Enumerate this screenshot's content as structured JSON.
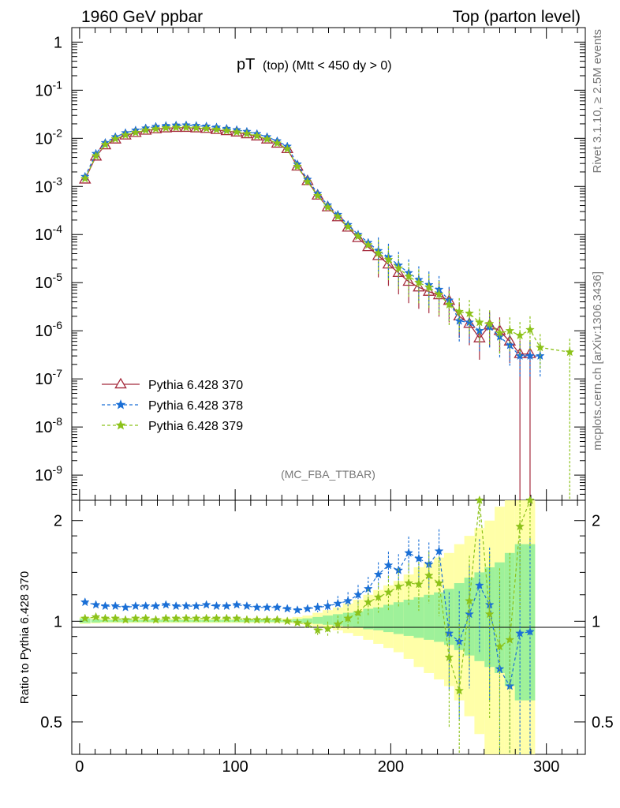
{
  "header": {
    "left": "1960 GeV ppbar",
    "right": "Top (parton level)"
  },
  "side": {
    "rivet": "Rivet 3.1.10, ≥ 2.5M events",
    "mcplots": "mcplots.cern.ch [arXiv:1306.3436]"
  },
  "chart_data": {
    "type": "line",
    "title_main": "pT",
    "title_sub": "(top)  (Mtt < 450 dy > 0)",
    "analysis_label": "(MC_FBA_TTBAR)",
    "ratio_ylabel": "Ratio to Pythia 6.428 370",
    "x": [
      3.5,
      10.5,
      16.5,
      23,
      29.5,
      36,
      42.5,
      49,
      55.5,
      62,
      68.5,
      75,
      81.5,
      88,
      94.5,
      101,
      107.5,
      114,
      120.5,
      127,
      133.5,
      140,
      146.5,
      153,
      159.5,
      166,
      172.5,
      179,
      185.5,
      192,
      198.5,
      205,
      211.5,
      218,
      224.5,
      231,
      237.5,
      244,
      250.5,
      257,
      263.5,
      270,
      276.5,
      283,
      289.5,
      296,
      315
    ],
    "top_panel": {
      "yscale": "log",
      "ylim": [
        3e-10,
        2
      ],
      "ytick_labels": [
        "1",
        "10^-1",
        "10^-2",
        "10^-3",
        "10^-4",
        "10^-5",
        "10^-6",
        "10^-7",
        "10^-8",
        "10^-9"
      ],
      "xlim": [
        -5,
        325
      ]
    },
    "ratio_panel": {
      "yscale": "log",
      "ylim": [
        0.4,
        2.3
      ],
      "ytick_labels": [
        "0.5",
        "1",
        "2"
      ],
      "xlim": [
        -5,
        325
      ],
      "xtick_labels": [
        "0",
        "100",
        "200",
        "300"
      ]
    },
    "series": [
      {
        "name": "Pythia 6.428 370",
        "color": "#a52a3c",
        "style": "solid",
        "marker": "triangle",
        "values": [
          0.0014,
          0.0042,
          0.0072,
          0.0095,
          0.0115,
          0.013,
          0.0145,
          0.0155,
          0.0162,
          0.0166,
          0.0166,
          0.0162,
          0.0158,
          0.015,
          0.0142,
          0.0133,
          0.0122,
          0.011,
          0.0095,
          0.0078,
          0.006,
          0.0026,
          0.0013,
          0.00065,
          0.00037,
          0.00023,
          0.00014,
          8.5e-05,
          5.5e-05,
          3.6e-05,
          2.4e-05,
          1.6e-05,
          1.05e-05,
          8e-06,
          6.5e-06,
          5.5e-06,
          4.2e-06,
          2e-06,
          1.4e-06,
          7e-07,
          1.3e-06,
          1e-06,
          6e-07,
          3.3e-07,
          3.3e-07,
          null,
          null
        ],
        "ratio": [
          1,
          1,
          1,
          1,
          1,
          1,
          1,
          1,
          1,
          1,
          1,
          1,
          1,
          1,
          1,
          1,
          1,
          1,
          1,
          1,
          1,
          1,
          1,
          1,
          1,
          1,
          1,
          1,
          1,
          1,
          1,
          1,
          1,
          1,
          1,
          1,
          1,
          1,
          1,
          1,
          1,
          1,
          1,
          1,
          1,
          null,
          null
        ]
      },
      {
        "name": "Pythia 6.428 378",
        "color": "#1a6fd6",
        "style": "dashed",
        "marker": "star",
        "values": [
          0.0016,
          0.0048,
          0.0081,
          0.0107,
          0.013,
          0.0147,
          0.0163,
          0.0175,
          0.0183,
          0.0187,
          0.0188,
          0.0183,
          0.0178,
          0.017,
          0.016,
          0.015,
          0.0138,
          0.0124,
          0.0107,
          0.0088,
          0.0068,
          0.0029,
          0.0014,
          0.00071,
          0.00041,
          0.00026,
          0.00016,
          0.0001,
          6.8e-05,
          4.6e-05,
          3.4e-05,
          2.3e-05,
          1.6e-05,
          1.15e-05,
          9e-06,
          7.2e-06,
          4.3e-06,
          1.6e-06,
          1.5e-06,
          1e-06,
          1.2e-06,
          7.5e-07,
          5e-07,
          3e-07,
          3e-07,
          3e-07,
          null
        ],
        "ratio": [
          1.14,
          1.12,
          1.11,
          1.11,
          1.1,
          1.11,
          1.11,
          1.11,
          1.12,
          1.11,
          1.11,
          1.11,
          1.12,
          1.11,
          1.11,
          1.12,
          1.11,
          1.1,
          1.1,
          1.1,
          1.09,
          1.08,
          1.09,
          1.1,
          1.11,
          1.13,
          1.15,
          1.2,
          1.25,
          1.38,
          1.47,
          1.42,
          1.6,
          1.54,
          1.48,
          1.62,
          0.92,
          0.87,
          1.05,
          1.28,
          1.12,
          0.72,
          0.64,
          0.92,
          0.93,
          null,
          null
        ]
      },
      {
        "name": "Pythia 6.428 379",
        "color": "#8cc21a",
        "style": "dashed",
        "marker": "star",
        "values": [
          0.00145,
          0.0043,
          0.0074,
          0.0097,
          0.0117,
          0.0132,
          0.0147,
          0.0157,
          0.0164,
          0.0168,
          0.0168,
          0.0164,
          0.016,
          0.0152,
          0.0144,
          0.0135,
          0.0124,
          0.0112,
          0.0096,
          0.0079,
          0.006,
          0.0026,
          0.00125,
          0.00064,
          0.00037,
          0.000235,
          0.000145,
          9.2e-05,
          6.1e-05,
          4.1e-05,
          3e-05,
          2e-05,
          1.35e-05,
          1e-05,
          8e-06,
          5.7e-06,
          3.5e-06,
          2.5e-06,
          2.3e-06,
          1.5e-06,
          1.4e-06,
          9e-07,
          1e-06,
          8e-07,
          1.05e-06,
          4.5e-07,
          3.6e-07
        ],
        "ratio": [
          1.02,
          1.03,
          1.02,
          1.02,
          1.01,
          1.02,
          1.02,
          1.01,
          1.02,
          1.02,
          1.02,
          1.02,
          1.02,
          1.02,
          1.02,
          1.02,
          1.01,
          1.01,
          1.01,
          1.01,
          1.0,
          0.99,
          0.98,
          0.94,
          0.95,
          0.98,
          1.02,
          1.06,
          1.14,
          1.18,
          1.22,
          1.27,
          1.3,
          1.29,
          1.37,
          1.3,
          0.78,
          0.62,
          1.15,
          2.4,
          1.05,
          0.84,
          0.88,
          1.92,
          2.5,
          null,
          null
        ]
      }
    ],
    "mc_band_inner_halfwidth": [
      0.02,
      0.015,
      0.01,
      0.01,
      0.01,
      0.01,
      0.01,
      0.01,
      0.01,
      0.01,
      0.01,
      0.01,
      0.01,
      0.01,
      0.01,
      0.01,
      0.01,
      0.01,
      0.01,
      0.01,
      0.01,
      0.015,
      0.02,
      0.03,
      0.04,
      0.05,
      0.06,
      0.07,
      0.09,
      0.1,
      0.12,
      0.14,
      0.16,
      0.18,
      0.2,
      0.22,
      0.25,
      0.3,
      0.35,
      0.4,
      0.45,
      0.5,
      0.6,
      0.7,
      0.7,
      null,
      null
    ],
    "mc_band_outer_halfwidth": [
      0.03,
      0.025,
      0.02,
      0.02,
      0.02,
      0.02,
      0.02,
      0.02,
      0.02,
      0.02,
      0.02,
      0.02,
      0.02,
      0.02,
      0.02,
      0.02,
      0.02,
      0.02,
      0.02,
      0.02,
      0.02,
      0.03,
      0.04,
      0.06,
      0.08,
      0.1,
      0.13,
      0.16,
      0.2,
      0.24,
      0.28,
      0.32,
      0.38,
      0.45,
      0.5,
      0.55,
      0.6,
      0.7,
      0.8,
      0.9,
      1.0,
      1.2,
      1.4,
      1.6,
      1.6,
      null,
      null
    ]
  }
}
